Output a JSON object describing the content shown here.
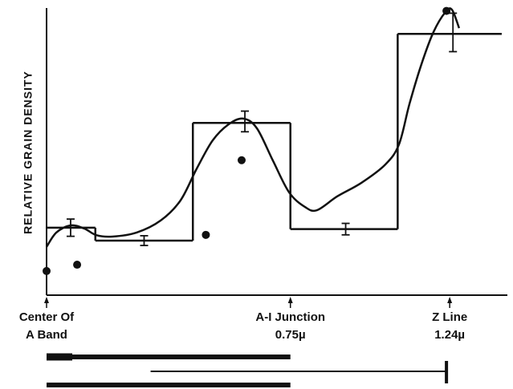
{
  "chart_data": {
    "type": "step",
    "y_label": "RELATIVE GRAIN DENSITY",
    "color": "#111111",
    "xlim": [
      0,
      1.41
    ],
    "ylim": [
      0,
      1
    ],
    "steps": {
      "edges": [
        0,
        0.15,
        0.45,
        0.75,
        1.08,
        1.4
      ],
      "values": [
        0.235,
        0.19,
        0.6,
        0.23,
        0.91
      ]
    },
    "error_bars": {
      "x": [
        0.074,
        0.3,
        0.61,
        0.92,
        1.25
      ],
      "values": [
        0.235,
        0.19,
        0.605,
        0.23,
        0.915
      ],
      "errors": [
        0.03,
        0.017,
        0.036,
        0.02,
        0.067
      ]
    },
    "points": {
      "x": [
        0,
        0.094,
        0.49,
        0.6,
        1.23
      ],
      "values": [
        0.084,
        0.106,
        0.21,
        0.47,
        0.99
      ]
    },
    "curve": {
      "x": [
        0,
        0.03,
        0.074,
        0.116,
        0.153,
        0.202,
        0.277,
        0.351,
        0.412,
        0.462,
        0.511,
        0.56,
        0.605,
        0.647,
        0.696,
        0.746,
        0.795,
        0.832,
        0.894,
        0.968,
        1.042,
        1.084,
        1.116,
        1.153,
        1.19,
        1.227,
        1.247,
        1.269
      ],
      "values": [
        0.168,
        0.218,
        0.243,
        0.232,
        0.209,
        0.204,
        0.218,
        0.26,
        0.33,
        0.441,
        0.539,
        0.595,
        0.615,
        0.581,
        0.469,
        0.358,
        0.307,
        0.296,
        0.344,
        0.391,
        0.455,
        0.525,
        0.665,
        0.804,
        0.916,
        0.986,
        0.994,
        0.93
      ]
    },
    "annotations": [
      {
        "x": 0,
        "lines": [
          "Center Of",
          "A Band"
        ]
      },
      {
        "x": 0.75,
        "lines": [
          "A-I Junction",
          "0.75µ"
        ]
      },
      {
        "x": 1.24,
        "lines": [
          "Z Line",
          "1.24µ"
        ]
      }
    ],
    "scale_bars": [
      {
        "start": 0,
        "end": 0.75
      },
      {
        "start": 0.32,
        "end": 1.23
      },
      {
        "start": 0,
        "end": 0.75
      }
    ]
  }
}
